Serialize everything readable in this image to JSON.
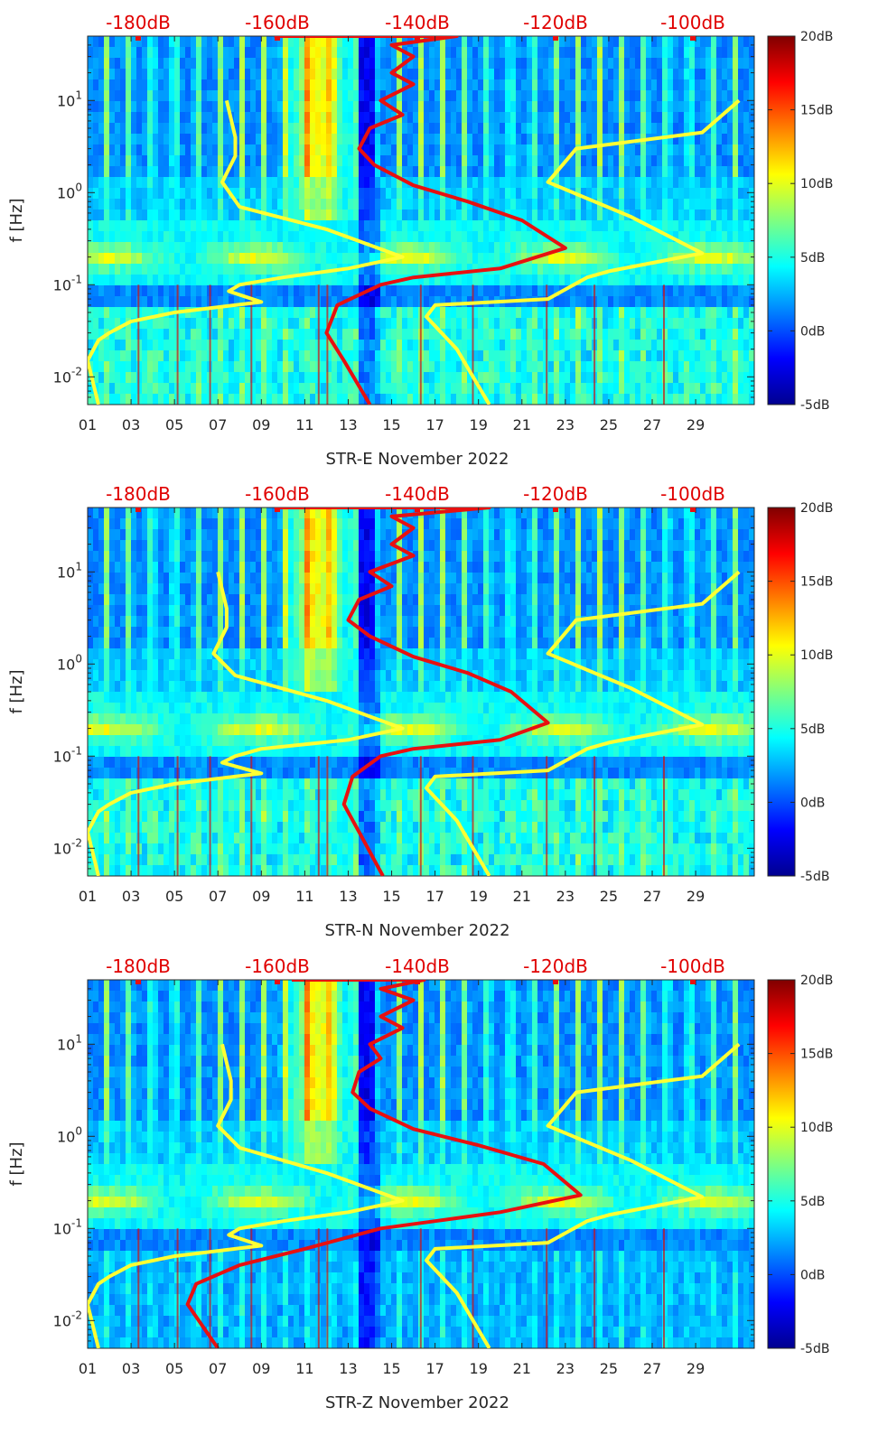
{
  "chart_data": [
    {
      "type": "heatmap",
      "title": "STR-E November 2022",
      "xlabel": "STR-E November 2022",
      "ylabel": "f [Hz]",
      "x_ticks": [
        "01",
        "03",
        "05",
        "07",
        "09",
        "11",
        "13",
        "15",
        "17",
        "19",
        "21",
        "23",
        "25",
        "27",
        "29"
      ],
      "y_ticks": [
        "10^{1}",
        "10^{0}",
        "10^{-1}",
        "10^{-2}"
      ],
      "y_scale": "log",
      "ylim": [
        0.005,
        50
      ],
      "top_axis_ticks": [
        "-180dB",
        "-160dB",
        "-140dB",
        "-120dB",
        "-100dB"
      ],
      "colorbar_ticks": [
        "20dB",
        "15dB",
        "10dB",
        "5dB",
        "0dB",
        "-5dB"
      ],
      "clim": [
        -5,
        20
      ],
      "yellow_lines": [
        [
          [
            7.4,
            10
          ],
          [
            7.8,
            4
          ],
          [
            7.8,
            2.5
          ],
          [
            7.2,
            1.3
          ],
          [
            8,
            0.7
          ],
          [
            12,
            0.4
          ],
          [
            15.5,
            0.2
          ],
          [
            13,
            0.15
          ],
          [
            10,
            0.12
          ],
          [
            8,
            0.1
          ],
          [
            7.5,
            0.085
          ],
          [
            9,
            0.065
          ],
          [
            5,
            0.05
          ],
          [
            3,
            0.04
          ],
          [
            2,
            0.03
          ],
          [
            1.5,
            0.025
          ],
          [
            1,
            0.015
          ],
          [
            1.5,
            0.005
          ]
        ],
        [
          [
            31,
            10
          ],
          [
            29.3,
            4.5
          ],
          [
            23.5,
            3
          ],
          [
            22.2,
            1.3
          ],
          [
            26,
            0.55
          ],
          [
            29.3,
            0.22
          ],
          [
            25,
            0.14
          ],
          [
            24,
            0.12
          ],
          [
            22.2,
            0.07
          ],
          [
            17,
            0.06
          ],
          [
            16.6,
            0.045
          ],
          [
            18,
            0.02
          ],
          [
            19.5,
            0.005
          ]
        ]
      ],
      "red_line": [
        [
          9.6,
          50
        ],
        [
          18,
          50
        ],
        [
          15,
          40
        ],
        [
          16,
          30
        ],
        [
          15,
          20
        ],
        [
          16,
          15
        ],
        [
          14.5,
          10
        ],
        [
          15.5,
          7
        ],
        [
          14,
          5
        ],
        [
          13.5,
          3
        ],
        [
          14.2,
          2
        ],
        [
          16,
          1.2
        ],
        [
          18.5,
          0.8
        ],
        [
          21,
          0.5
        ],
        [
          23,
          0.25
        ],
        [
          20,
          0.15
        ],
        [
          16,
          0.12
        ],
        [
          14.5,
          0.1
        ],
        [
          12.5,
          0.06
        ],
        [
          12,
          0.03
        ],
        [
          12.8,
          0.015
        ],
        [
          14,
          0.005
        ]
      ]
    },
    {
      "type": "heatmap",
      "title": "STR-N November 2022",
      "xlabel": "STR-N November 2022",
      "ylabel": "f [Hz]",
      "x_ticks": [
        "01",
        "03",
        "05",
        "07",
        "09",
        "11",
        "13",
        "15",
        "17",
        "19",
        "21",
        "23",
        "25",
        "27",
        "29"
      ],
      "y_ticks": [
        "10^{1}",
        "10^{0}",
        "10^{-1}",
        "10^{-2}"
      ],
      "y_scale": "log",
      "ylim": [
        0.005,
        50
      ],
      "top_axis_ticks": [
        "-180dB",
        "-160dB",
        "-140dB",
        "-120dB",
        "-100dB"
      ],
      "colorbar_ticks": [
        "20dB",
        "15dB",
        "10dB",
        "5dB",
        "0dB",
        "-5dB"
      ],
      "clim": [
        -5,
        20
      ],
      "yellow_lines": [
        [
          [
            7,
            10
          ],
          [
            7.4,
            4
          ],
          [
            7.4,
            2.5
          ],
          [
            6.8,
            1.3
          ],
          [
            7.8,
            0.75
          ],
          [
            12,
            0.4
          ],
          [
            15.5,
            0.2
          ],
          [
            13,
            0.15
          ],
          [
            9,
            0.12
          ],
          [
            7.8,
            0.1
          ],
          [
            7.2,
            0.085
          ],
          [
            9,
            0.065
          ],
          [
            5,
            0.05
          ],
          [
            3,
            0.04
          ],
          [
            2,
            0.03
          ],
          [
            1.5,
            0.025
          ],
          [
            1,
            0.015
          ],
          [
            1.5,
            0.005
          ]
        ],
        [
          [
            31,
            10
          ],
          [
            29.3,
            4.5
          ],
          [
            23.5,
            3
          ],
          [
            22.2,
            1.3
          ],
          [
            26,
            0.55
          ],
          [
            29.3,
            0.22
          ],
          [
            25,
            0.14
          ],
          [
            24,
            0.12
          ],
          [
            22.2,
            0.07
          ],
          [
            17,
            0.06
          ],
          [
            16.6,
            0.045
          ],
          [
            18,
            0.02
          ],
          [
            19.5,
            0.005
          ]
        ]
      ],
      "red_line": [
        [
          9.6,
          50
        ],
        [
          19.5,
          50
        ],
        [
          15,
          40
        ],
        [
          16,
          30
        ],
        [
          15,
          20
        ],
        [
          16,
          15
        ],
        [
          14,
          10
        ],
        [
          15,
          7
        ],
        [
          13.5,
          5
        ],
        [
          13,
          3
        ],
        [
          14,
          2
        ],
        [
          16,
          1.2
        ],
        [
          18.5,
          0.8
        ],
        [
          20.5,
          0.5
        ],
        [
          22.2,
          0.23
        ],
        [
          20,
          0.15
        ],
        [
          16,
          0.12
        ],
        [
          14.5,
          0.1
        ],
        [
          13.2,
          0.06
        ],
        [
          12.8,
          0.03
        ],
        [
          13.5,
          0.015
        ],
        [
          14.6,
          0.005
        ]
      ]
    },
    {
      "type": "heatmap",
      "title": "STR-Z November 2022",
      "xlabel": "STR-Z November 2022",
      "ylabel": "f [Hz]",
      "x_ticks": [
        "01",
        "03",
        "05",
        "07",
        "09",
        "11",
        "13",
        "15",
        "17",
        "19",
        "21",
        "23",
        "25",
        "27",
        "29"
      ],
      "y_ticks": [
        "10^{1}",
        "10^{0}",
        "10^{-1}",
        "10^{-2}"
      ],
      "y_scale": "log",
      "ylim": [
        0.005,
        50
      ],
      "top_axis_ticks": [
        "-180dB",
        "-160dB",
        "-140dB",
        "-120dB",
        "-100dB"
      ],
      "colorbar_ticks": [
        "20dB",
        "15dB",
        "10dB",
        "5dB",
        "0dB",
        "-5dB"
      ],
      "clim": [
        -5,
        20
      ],
      "yellow_lines": [
        [
          [
            7.2,
            10
          ],
          [
            7.6,
            4
          ],
          [
            7.6,
            2.5
          ],
          [
            7,
            1.3
          ],
          [
            8,
            0.75
          ],
          [
            12,
            0.4
          ],
          [
            15.5,
            0.2
          ],
          [
            13,
            0.15
          ],
          [
            10,
            0.12
          ],
          [
            8,
            0.1
          ],
          [
            7.5,
            0.085
          ],
          [
            9,
            0.065
          ],
          [
            5,
            0.05
          ],
          [
            3,
            0.04
          ],
          [
            2,
            0.03
          ],
          [
            1.5,
            0.025
          ],
          [
            1,
            0.015
          ],
          [
            1.5,
            0.005
          ]
        ],
        [
          [
            31,
            10
          ],
          [
            29.3,
            4.5
          ],
          [
            23.5,
            3
          ],
          [
            22.2,
            1.3
          ],
          [
            26,
            0.55
          ],
          [
            29.3,
            0.22
          ],
          [
            25,
            0.14
          ],
          [
            24,
            0.12
          ],
          [
            22.2,
            0.07
          ],
          [
            17,
            0.06
          ],
          [
            16.6,
            0.045
          ],
          [
            18,
            0.02
          ],
          [
            19.5,
            0.005
          ]
        ]
      ],
      "red_line": [
        [
          10.4,
          50
        ],
        [
          16.5,
          50
        ],
        [
          14.5,
          40
        ],
        [
          16,
          30
        ],
        [
          14.5,
          20
        ],
        [
          15.5,
          15
        ],
        [
          14,
          10
        ],
        [
          14.5,
          7
        ],
        [
          13.5,
          5
        ],
        [
          13.2,
          3
        ],
        [
          14,
          2
        ],
        [
          16,
          1.2
        ],
        [
          19,
          0.8
        ],
        [
          22,
          0.5
        ],
        [
          23.7,
          0.23
        ],
        [
          20,
          0.15
        ],
        [
          17,
          0.12
        ],
        [
          14.5,
          0.1
        ],
        [
          11,
          0.06
        ],
        [
          8,
          0.04
        ],
        [
          6,
          0.025
        ],
        [
          5.6,
          0.015
        ],
        [
          7,
          0.005
        ]
      ]
    }
  ]
}
